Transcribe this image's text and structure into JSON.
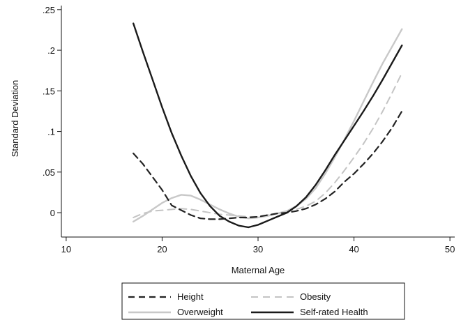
{
  "chart_data": {
    "type": "line",
    "title": "",
    "xlabel": "Maternal Age",
    "ylabel": "Standard Deviation",
    "xlim": [
      9.5,
      50.5
    ],
    "ylim": [
      -0.03,
      0.255
    ],
    "x_ticks": [
      10,
      20,
      30,
      40,
      50
    ],
    "x_tick_labels": [
      "10",
      "20",
      "30",
      "40",
      "50"
    ],
    "y_ticks": [
      0,
      0.05,
      0.1,
      0.15,
      0.2,
      0.25
    ],
    "y_tick_labels": [
      "0",
      ".05",
      ".1",
      ".15",
      ".2",
      ".25"
    ],
    "grid": false,
    "legend_position": "bottom",
    "series": [
      {
        "name": "Height",
        "color": "#222222",
        "dash": "9,6",
        "width": 2.2,
        "points": [
          [
            17,
            0.073
          ],
          [
            18,
            0.06
          ],
          [
            19,
            0.044
          ],
          [
            20,
            0.028
          ],
          [
            21,
            0.009
          ],
          [
            22,
            0.003
          ],
          [
            23,
            -0.003
          ],
          [
            24,
            -0.007
          ],
          [
            25,
            -0.008
          ],
          [
            26,
            -0.008
          ],
          [
            27,
            -0.007
          ],
          [
            28,
            -0.006
          ],
          [
            29,
            -0.006
          ],
          [
            30,
            -0.005
          ],
          [
            31,
            -0.003
          ],
          [
            32,
            -0.001
          ],
          [
            33,
            0.0
          ],
          [
            34,
            0.002
          ],
          [
            35,
            0.005
          ],
          [
            36,
            0.01
          ],
          [
            37,
            0.017
          ],
          [
            38,
            0.026
          ],
          [
            39,
            0.038
          ],
          [
            40,
            0.048
          ],
          [
            41,
            0.06
          ],
          [
            42,
            0.073
          ],
          [
            43,
            0.088
          ],
          [
            44,
            0.105
          ],
          [
            45,
            0.125
          ]
        ]
      },
      {
        "name": "Obesity",
        "color": "#c4c4c4",
        "dash": "10,7",
        "width": 2,
        "points": [
          [
            17,
            -0.006
          ],
          [
            18,
            -0.001
          ],
          [
            19,
            0.002
          ],
          [
            20,
            0.003
          ],
          [
            21,
            0.004
          ],
          [
            22,
            0.005
          ],
          [
            23,
            0.004
          ],
          [
            24,
            0.002
          ],
          [
            25,
            0.0
          ],
          [
            26,
            -0.002
          ],
          [
            27,
            -0.003
          ],
          [
            28,
            -0.004
          ],
          [
            29,
            -0.005
          ],
          [
            30,
            -0.005
          ],
          [
            31,
            -0.003
          ],
          [
            32,
            -0.001
          ],
          [
            33,
            0.001
          ],
          [
            34,
            0.004
          ],
          [
            35,
            0.008
          ],
          [
            36,
            0.014
          ],
          [
            37,
            0.024
          ],
          [
            38,
            0.037
          ],
          [
            39,
            0.052
          ],
          [
            40,
            0.068
          ],
          [
            41,
            0.085
          ],
          [
            42,
            0.104
          ],
          [
            43,
            0.125
          ],
          [
            44,
            0.148
          ],
          [
            45,
            0.172
          ]
        ]
      },
      {
        "name": "Overweight",
        "color": "#c8c8c8",
        "dash": "",
        "width": 2.4,
        "points": [
          [
            17,
            -0.011
          ],
          [
            18,
            -0.004
          ],
          [
            19,
            0.004
          ],
          [
            20,
            0.012
          ],
          [
            21,
            0.018
          ],
          [
            22,
            0.022
          ],
          [
            23,
            0.021
          ],
          [
            24,
            0.016
          ],
          [
            25,
            0.01
          ],
          [
            26,
            0.004
          ],
          [
            27,
            -0.001
          ],
          [
            28,
            -0.005
          ],
          [
            29,
            -0.007
          ],
          [
            30,
            -0.006
          ],
          [
            31,
            -0.004
          ],
          [
            32,
            -0.001
          ],
          [
            33,
            0.002
          ],
          [
            34,
            0.008
          ],
          [
            35,
            0.017
          ],
          [
            36,
            0.03
          ],
          [
            37,
            0.048
          ],
          [
            38,
            0.068
          ],
          [
            39,
            0.09
          ],
          [
            40,
            0.113
          ],
          [
            41,
            0.137
          ],
          [
            42,
            0.161
          ],
          [
            43,
            0.184
          ],
          [
            44,
            0.205
          ],
          [
            45,
            0.226
          ]
        ]
      },
      {
        "name": "Self-rated Health",
        "color": "#1a1a1a",
        "dash": "",
        "width": 2.4,
        "points": [
          [
            17,
            0.233
          ],
          [
            18,
            0.198
          ],
          [
            19,
            0.164
          ],
          [
            20,
            0.13
          ],
          [
            21,
            0.098
          ],
          [
            22,
            0.07
          ],
          [
            23,
            0.045
          ],
          [
            24,
            0.024
          ],
          [
            25,
            0.008
          ],
          [
            26,
            -0.004
          ],
          [
            27,
            -0.011
          ],
          [
            28,
            -0.016
          ],
          [
            29,
            -0.018
          ],
          [
            30,
            -0.015
          ],
          [
            31,
            -0.01
          ],
          [
            32,
            -0.005
          ],
          [
            33,
            0.0
          ],
          [
            34,
            0.008
          ],
          [
            35,
            0.019
          ],
          [
            36,
            0.034
          ],
          [
            37,
            0.052
          ],
          [
            38,
            0.071
          ],
          [
            39,
            0.089
          ],
          [
            40,
            0.107
          ],
          [
            41,
            0.125
          ],
          [
            42,
            0.144
          ],
          [
            43,
            0.164
          ],
          [
            44,
            0.185
          ],
          [
            45,
            0.206
          ]
        ]
      }
    ]
  }
}
